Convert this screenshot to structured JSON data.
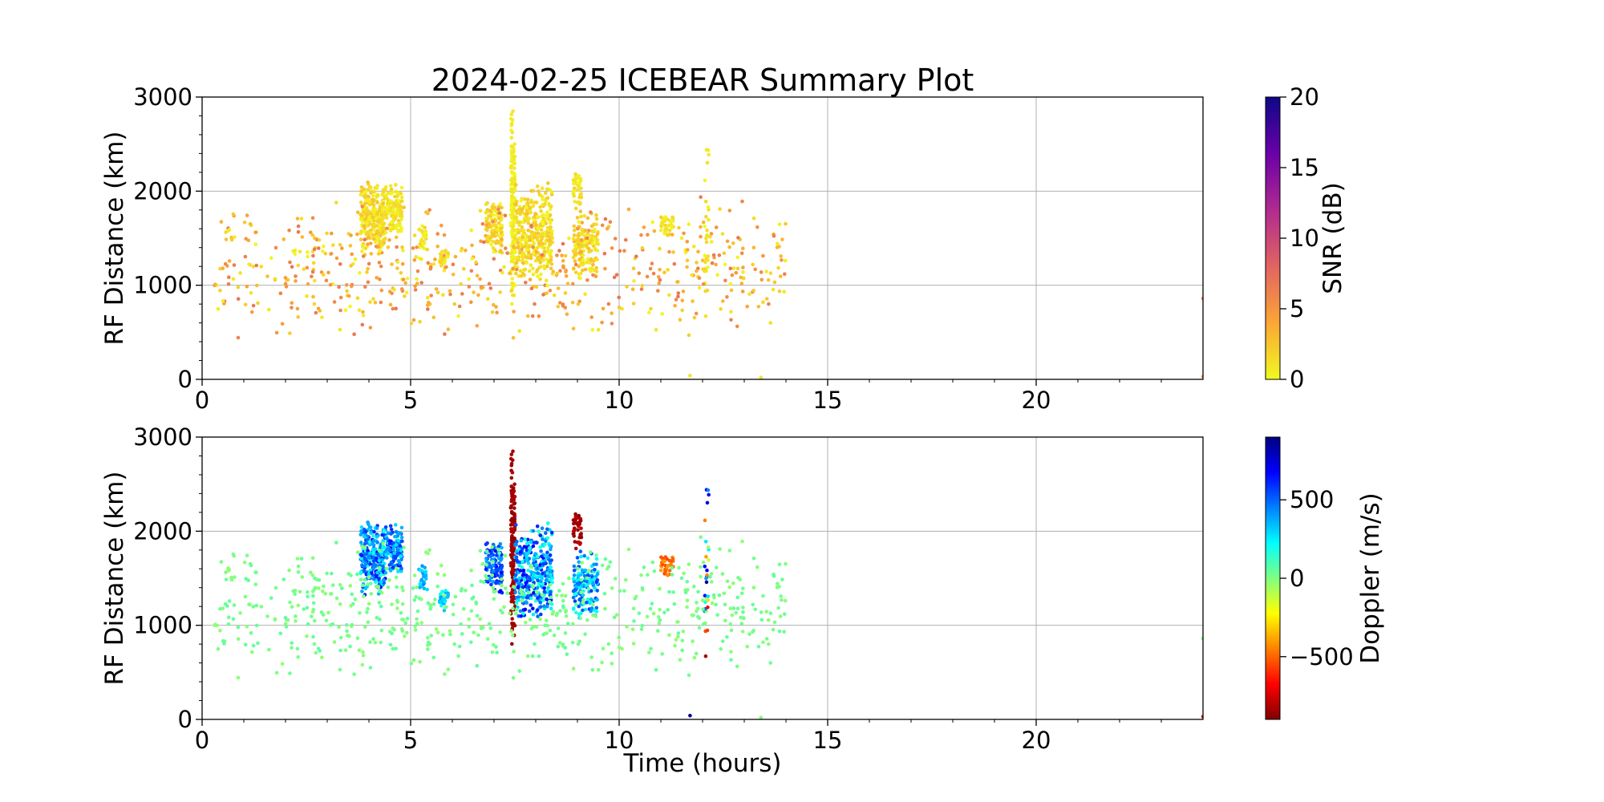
{
  "chart_data": [
    {
      "type": "scatter",
      "title": "2024-02-25 ICEBEAR Summary Plot",
      "xlabel": "",
      "ylabel": "RF Distance (km)",
      "xlim": [
        0,
        24
      ],
      "ylim": [
        0,
        3000
      ],
      "xticks": [
        "0",
        "5",
        "10",
        "15",
        "20"
      ],
      "yticks": [
        "0",
        "1000",
        "2000",
        "3000"
      ],
      "grid": true,
      "colorbar": {
        "label": "SNR (dB)",
        "range": [
          0,
          20
        ],
        "ticks": [
          "0",
          "5",
          "10",
          "15",
          "20"
        ],
        "colormap": "plasma_r",
        "colors": [
          "#f0f921",
          "#fca636",
          "#e16462",
          "#b12a90",
          "#6a00a8",
          "#0d0887"
        ]
      },
      "clusters": [
        {
          "t": [
            3.8,
            4.4
          ],
          "r": [
            1300,
            2130
          ],
          "n": 260,
          "snr": [
            0,
            3
          ],
          "doppler": [
            150,
            700
          ]
        },
        {
          "t": [
            4.4,
            4.8
          ],
          "r": [
            1500,
            2100
          ],
          "n": 120,
          "snr": [
            0,
            2
          ],
          "doppler": [
            250,
            650
          ]
        },
        {
          "t": [
            5.2,
            5.4
          ],
          "r": [
            1350,
            1700
          ],
          "n": 25,
          "snr": [
            0,
            2
          ],
          "doppler": [
            250,
            450
          ]
        },
        {
          "t": [
            5.7,
            5.9
          ],
          "r": [
            1150,
            1400
          ],
          "n": 25,
          "snr": [
            0,
            2
          ],
          "doppler": [
            200,
            400
          ]
        },
        {
          "t": [
            6.8,
            7.2
          ],
          "r": [
            1300,
            1900
          ],
          "n": 120,
          "snr": [
            0,
            3
          ],
          "doppler": [
            350,
            700
          ]
        },
        {
          "t": [
            7.4,
            7.5
          ],
          "r": [
            700,
            3000
          ],
          "n": 160,
          "snr": [
            0,
            1
          ],
          "doppler": [
            -880,
            -800
          ]
        },
        {
          "t": [
            7.5,
            8.4
          ],
          "r": [
            1000,
            2120
          ],
          "n": 330,
          "snr": [
            0,
            3
          ],
          "doppler": [
            150,
            700
          ]
        },
        {
          "t": [
            8.9,
            9.1
          ],
          "r": [
            1800,
            2220
          ],
          "n": 40,
          "snr": [
            0,
            2
          ],
          "doppler": [
            -880,
            -780
          ]
        },
        {
          "t": [
            8.9,
            9.5
          ],
          "r": [
            1050,
            1800
          ],
          "n": 150,
          "snr": [
            0,
            3
          ],
          "doppler": [
            150,
            600
          ]
        },
        {
          "t": [
            11.0,
            11.3
          ],
          "r": [
            1500,
            1780
          ],
          "n": 35,
          "snr": [
            0,
            2
          ],
          "doppler": [
            -560,
            -380
          ]
        },
        {
          "t": [
            12.05,
            12.15
          ],
          "r": [
            100,
            2800
          ],
          "n": 28,
          "snr": [
            0,
            2
          ],
          "doppler": [
            -880,
            880
          ]
        },
        {
          "t": [
            0.3,
            14.0
          ],
          "r": [
            380,
            1950
          ],
          "n": 620,
          "snr": [
            0,
            7
          ],
          "doppler": [
            -30,
            60
          ]
        }
      ],
      "points": [
        {
          "t": 24.0,
          "r": 860,
          "snr": 6,
          "doppler": 0
        },
        {
          "t": 24.0,
          "r": 30,
          "snr": 4,
          "doppler": -700
        },
        {
          "t": 13.4,
          "r": 20,
          "snr": 1,
          "doppler": 0
        },
        {
          "t": 11.7,
          "r": 40,
          "snr": 1,
          "doppler": 880
        }
      ]
    },
    {
      "type": "scatter",
      "title": "",
      "xlabel": "Time (hours)",
      "ylabel": "RF Distance (km)",
      "xlim": [
        0,
        24
      ],
      "ylim": [
        0,
        3000
      ],
      "xticks": [
        "0",
        "5",
        "10",
        "15",
        "20"
      ],
      "yticks": [
        "0",
        "1000",
        "2000",
        "3000"
      ],
      "grid": true,
      "colorbar": {
        "label": "Doppler (m/s)",
        "range": [
          -900,
          900
        ],
        "ticks": [
          "−500",
          "0",
          "500"
        ],
        "tick_values": [
          -500,
          0,
          500
        ],
        "colormap": "jet_r",
        "colors": [
          "#800000",
          "#ff0000",
          "#ff8000",
          "#ffff00",
          "#80ff80",
          "#00ffff",
          "#0080ff",
          "#0000ff",
          "#000080"
        ]
      }
    }
  ]
}
